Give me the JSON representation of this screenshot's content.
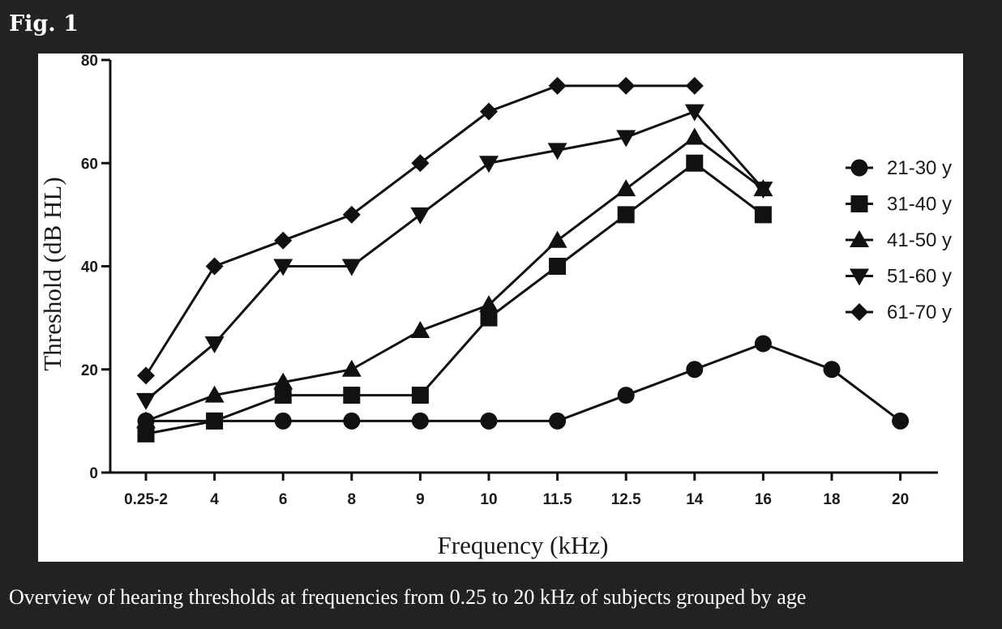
{
  "figure_label": "Fig. 1",
  "caption": "Overview of hearing thresholds at frequencies from 0.25 to 20 kHz of subjects grouped by age",
  "chart_data": {
    "type": "line",
    "title": "",
    "xlabel": "Frequency (kHz)",
    "ylabel": "Threshold (dB HL)",
    "categories": [
      "0.25-2",
      "4",
      "6",
      "8",
      "9",
      "10",
      "11.5",
      "12.5",
      "14",
      "16",
      "18",
      "20"
    ],
    "ylim": [
      0,
      80
    ],
    "yticks": [
      0,
      20,
      40,
      60,
      80
    ],
    "grid": false,
    "legend_position": "right",
    "series": [
      {
        "name": "21-30 y",
        "marker": "circle",
        "values": [
          10,
          10,
          10,
          10,
          10,
          10,
          10,
          15,
          20,
          25,
          20,
          10
        ]
      },
      {
        "name": "31-40 y",
        "marker": "square",
        "values": [
          7.5,
          10,
          15,
          15,
          15,
          30,
          40,
          50,
          60,
          50,
          null,
          null
        ]
      },
      {
        "name": "41-50 y",
        "marker": "triangle-up",
        "values": [
          10,
          15,
          17.5,
          20,
          27.5,
          32.5,
          45,
          55,
          65,
          55,
          null,
          null
        ]
      },
      {
        "name": "51-60 y",
        "marker": "triangle-down",
        "values": [
          14,
          25,
          40,
          40,
          50,
          60,
          62.5,
          65,
          70,
          55,
          null,
          null
        ]
      },
      {
        "name": "61-70 y",
        "marker": "diamond",
        "values": [
          18.8,
          40,
          45,
          50,
          60,
          70,
          75,
          75,
          75,
          null,
          null,
          null
        ]
      }
    ],
    "colors": {
      "line": "#111111",
      "marker": "#111111"
    }
  }
}
